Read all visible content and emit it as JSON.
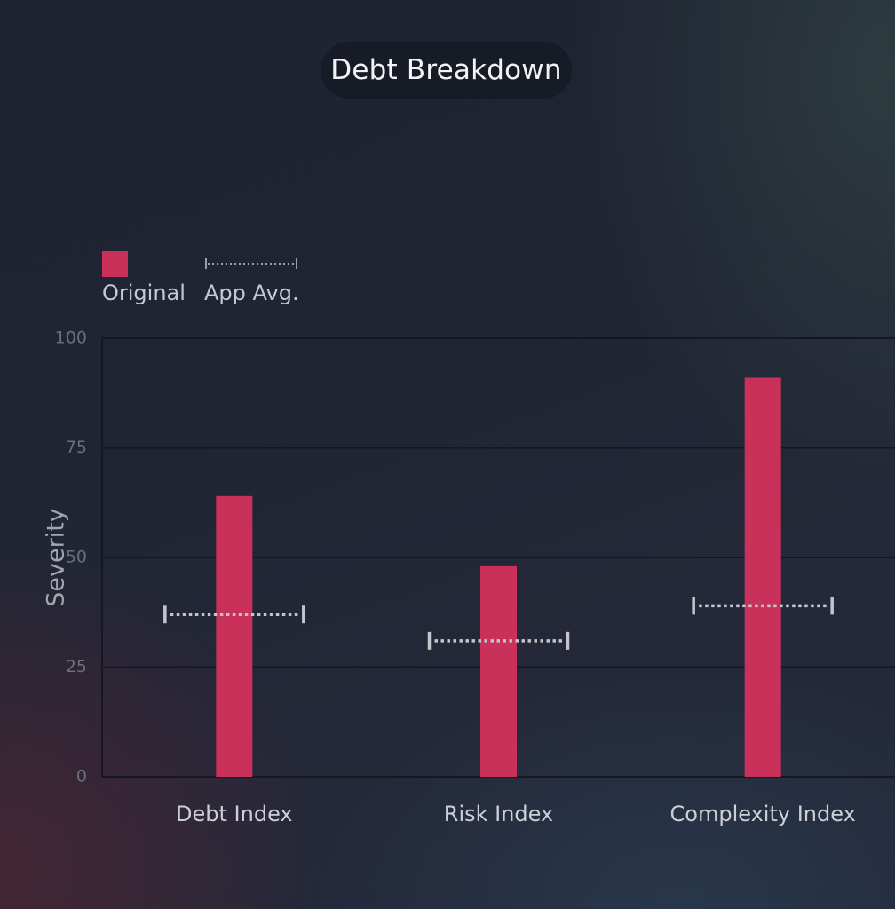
{
  "title": "Debt Breakdown",
  "legend": {
    "bar_label": "Original",
    "marker_label": "App Avg."
  },
  "colors": {
    "bar": "#c9305a",
    "marker": "#c4c6cc",
    "grid": "#15181f",
    "tick_text": "#6c6f7b",
    "category_text": "#cdcfd7",
    "axis_label": "#a3a5ae"
  },
  "chart_data": {
    "type": "bar",
    "title": "Debt Breakdown",
    "xlabel": "",
    "ylabel": "Severity",
    "ylim": [
      0,
      100
    ],
    "yticks": [
      0,
      25,
      50,
      75,
      100
    ],
    "grid": true,
    "legend_position": "top-left",
    "categories": [
      "Debt Index",
      "Risk Index",
      "Complexity Index"
    ],
    "series": [
      {
        "name": "Original",
        "kind": "bar",
        "values": [
          64,
          48,
          91
        ]
      },
      {
        "name": "App Avg.",
        "kind": "marker",
        "values": [
          37,
          31,
          39
        ]
      }
    ]
  }
}
